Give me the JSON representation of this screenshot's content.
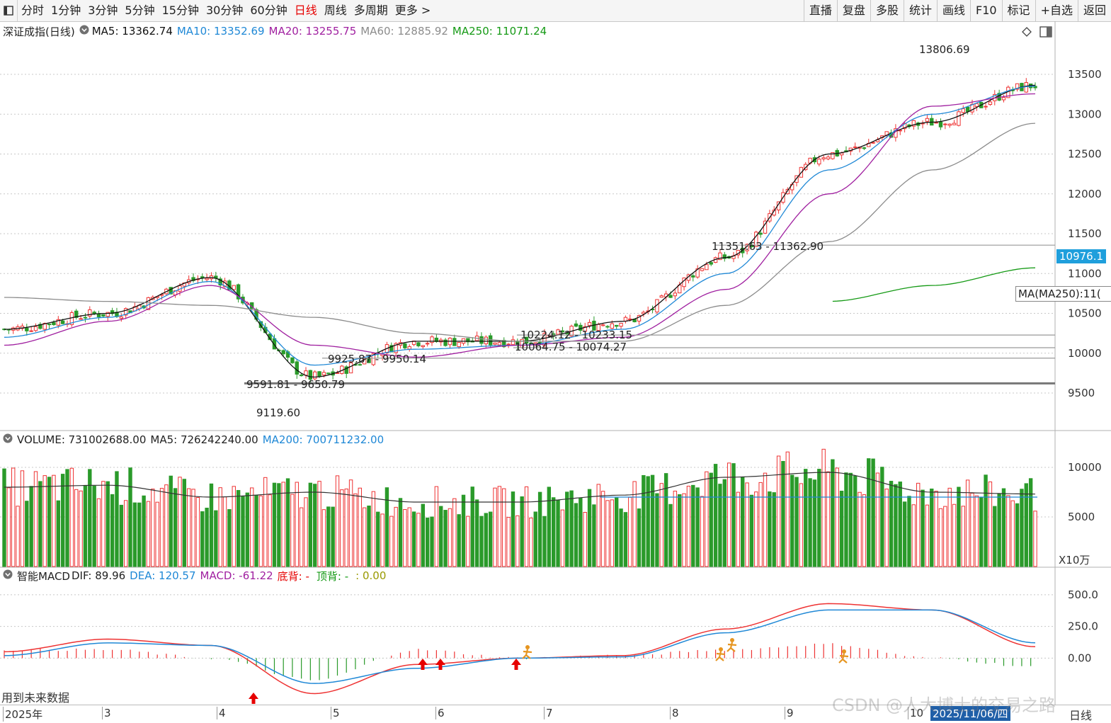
{
  "toolbar": {
    "periods": [
      "分时",
      "1分钟",
      "3分钟",
      "5分钟",
      "15分钟",
      "30分钟",
      "60分钟",
      "日线",
      "周线",
      "多周期",
      "更多 >"
    ],
    "active_index": 7,
    "right_buttons": [
      "直播",
      "复盘",
      "多股",
      "统计",
      "画线",
      "F10",
      "标记",
      "+自选",
      "返回"
    ]
  },
  "main": {
    "title": "深证成指(日线)",
    "ma": [
      {
        "label": "MA5: 13362.74",
        "color": "#111111"
      },
      {
        "label": "MA10: 13352.69",
        "color": "#1f88d6"
      },
      {
        "label": "MA20: 13255.75",
        "color": "#a020a0"
      },
      {
        "label": "MA60: 12885.92",
        "color": "#8c8c8c"
      },
      {
        "label": "MA250: 11071.24",
        "color": "#159a15"
      }
    ],
    "price_tag": "10976.1",
    "tooltip": "MA(MA250):11("
  },
  "volume": {
    "title": "VOLUME: 731002688.00",
    "ma5": "MA5: 726242240.00",
    "ma200": "MA200: 700711232.00",
    "unit": "X10万"
  },
  "macd": {
    "title": "智能MACD",
    "dif": "DIF: 89.96",
    "dea": "DEA: 120.57",
    "macd": "MACD: -61.22",
    "bottom": "底背: -",
    "top": "顶背: -",
    "extra": ": 0.00",
    "future_note": "用到未来数据"
  },
  "bottom_axis": {
    "ticks": [
      "2025年",
      "3",
      "4",
      "5",
      "6",
      "7",
      "8",
      "9",
      "10"
    ],
    "date_tag": "2025/11/06/四",
    "period_label": "日线"
  },
  "watermark": "CSDN @人大博士的交易之路",
  "chart_data": [
    {
      "type": "line",
      "title": "深证成指(日线)",
      "ylim": [
        9100,
        13900
      ],
      "yticks": [
        9500,
        10000,
        10500,
        11000,
        11500,
        12000,
        12500,
        13000,
        13500
      ],
      "x": [
        "2025-01",
        "2025-02",
        "2025-03",
        "2025-04",
        "2025-05",
        "2025-06",
        "2025-07",
        "2025-08",
        "2025-09",
        "2025-10",
        "2025-11-06"
      ],
      "series": [
        {
          "name": "MA5",
          "values": [
            10300,
            10500,
            10950,
            9700,
            10150,
            10150,
            10400,
            11200,
            12500,
            12900,
            13362.74
          ]
        },
        {
          "name": "MA10",
          "values": [
            10200,
            10450,
            10900,
            9850,
            10050,
            10100,
            10300,
            11000,
            12300,
            13000,
            13352.69
          ]
        },
        {
          "name": "MA20",
          "values": [
            10100,
            10400,
            10850,
            10100,
            9950,
            10100,
            10200,
            10800,
            12000,
            13100,
            13255.75
          ]
        },
        {
          "name": "MA60",
          "values": [
            10700,
            10650,
            10600,
            10450,
            10250,
            10150,
            10150,
            10600,
            11400,
            12300,
            12885.92
          ]
        },
        {
          "name": "MA250",
          "values": [
            null,
            null,
            null,
            null,
            null,
            null,
            null,
            null,
            10650,
            10850,
            11071.24
          ]
        }
      ],
      "annotations": [
        {
          "label": "13806.69"
        },
        {
          "label": "11351.63 - 11362.90"
        },
        {
          "label": "10224.12 - 10233.15"
        },
        {
          "label": "10064.75 - 10074.27"
        },
        {
          "label": "9925.87 - 9950.14"
        },
        {
          "label": "9591.81 - 9650.79"
        },
        {
          "label": "9119.60"
        }
      ]
    },
    {
      "type": "bar",
      "title": "VOLUME",
      "ylim": [
        0,
        12000
      ],
      "yticks": [
        5000,
        10000
      ],
      "x": [
        "2025-01",
        "2025-02",
        "2025-03",
        "2025-04",
        "2025-05",
        "2025-06",
        "2025-07",
        "2025-08",
        "2025-09",
        "2025-10",
        "2025-11-06"
      ],
      "values": [
        8000,
        8200,
        7000,
        7500,
        6500,
        6500,
        7200,
        9000,
        9500,
        7500,
        7310
      ]
    },
    {
      "type": "line",
      "title": "智能MACD",
      "ylim": [
        -350,
        600
      ],
      "yticks": [
        0,
        250,
        500
      ],
      "x": [
        "2025-01",
        "2025-02",
        "2025-03",
        "2025-04",
        "2025-05",
        "2025-06",
        "2025-07",
        "2025-08",
        "2025-09",
        "2025-10",
        "2025-11-06"
      ],
      "series": [
        {
          "name": "DIF",
          "values": [
            50,
            150,
            100,
            -280,
            -50,
            0,
            20,
            230,
            430,
            380,
            89.96
          ]
        },
        {
          "name": "DEA",
          "values": [
            20,
            120,
            100,
            -200,
            -80,
            0,
            10,
            200,
            380,
            380,
            120.57
          ]
        }
      ]
    }
  ]
}
